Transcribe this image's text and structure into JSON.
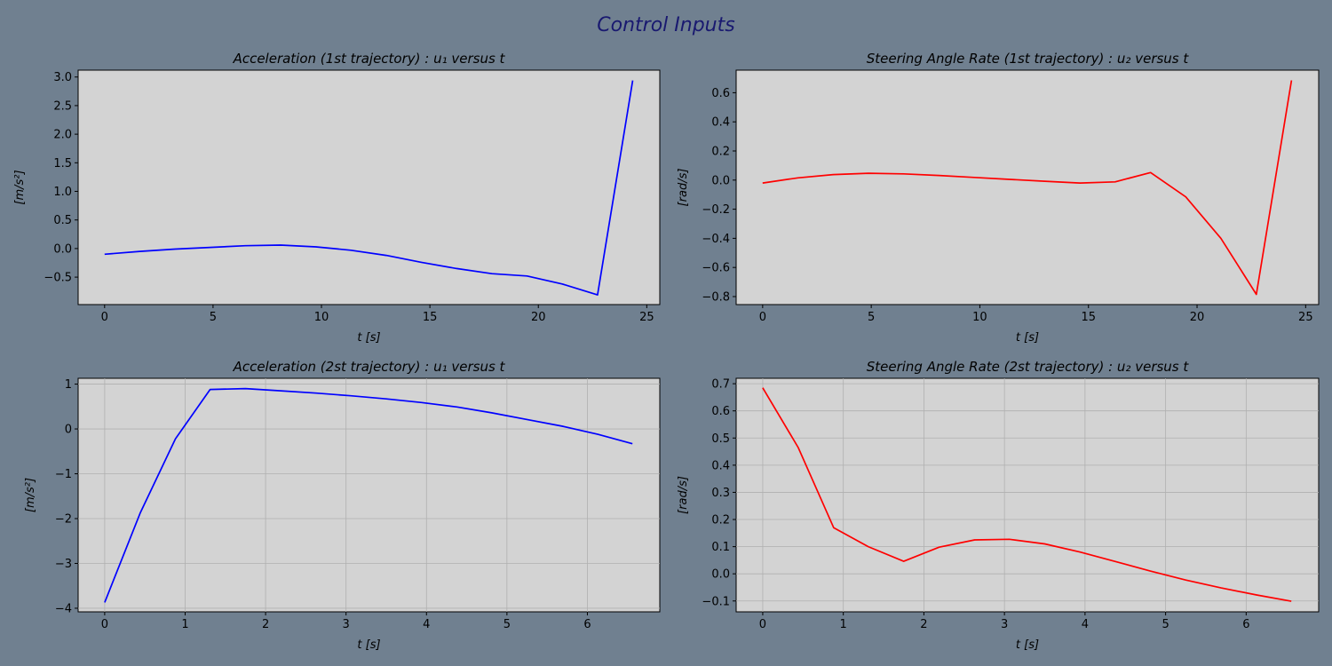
{
  "figure": {
    "title": "Control Inputs",
    "background": "#708090",
    "title_color": "#191970",
    "plot_background": "#d3d3d3"
  },
  "chart_data": [
    {
      "type": "line",
      "title": "Acceleration (1st trajectory) :  u₁ versus t",
      "xlabel": "t [s]",
      "ylabel": "[m/s²]",
      "xlim": [
        -1.22,
        25.6
      ],
      "ylim": [
        -0.98,
        3.12
      ],
      "xticks": [
        0,
        5,
        10,
        15,
        20,
        25
      ],
      "yticks": [
        -0.5,
        0.0,
        0.5,
        1.0,
        1.5,
        2.0,
        2.5,
        3.0
      ],
      "xtick_labels": [
        "0",
        "5",
        "10",
        "15",
        "20",
        "25"
      ],
      "ytick_labels": [
        "−0.5",
        "0.0",
        "0.5",
        "1.0",
        "1.5",
        "2.0",
        "2.5",
        "3.0"
      ],
      "grid": false,
      "series": [
        {
          "color": "#0000ff",
          "x": [
            0,
            1.62,
            3.25,
            4.87,
            6.49,
            8.12,
            9.74,
            11.36,
            12.99,
            14.61,
            16.23,
            17.86,
            19.48,
            21.1,
            22.73,
            24.35
          ],
          "y": [
            -0.1,
            -0.05,
            -0.01,
            0.02,
            0.05,
            0.06,
            0.03,
            -0.03,
            -0.12,
            -0.24,
            -0.35,
            -0.44,
            -0.48,
            -0.62,
            -0.81,
            2.94
          ]
        }
      ]
    },
    {
      "type": "line",
      "title": "Steering Angle Rate (1st trajectory) :  u₂ versus t",
      "xlabel": "t [s]",
      "ylabel": "[rad/s]",
      "xlim": [
        -1.22,
        25.6
      ],
      "ylim": [
        -0.855,
        0.755
      ],
      "xticks": [
        0,
        5,
        10,
        15,
        20,
        25
      ],
      "yticks": [
        -0.8,
        -0.6,
        -0.4,
        -0.2,
        0.0,
        0.2,
        0.4,
        0.6
      ],
      "xtick_labels": [
        "0",
        "5",
        "10",
        "15",
        "20",
        "25"
      ],
      "ytick_labels": [
        "−0.8",
        "−0.6",
        "−0.4",
        "−0.2",
        "0.0",
        "0.2",
        "0.4",
        "0.6"
      ],
      "grid": false,
      "series": [
        {
          "color": "#ff0000",
          "x": [
            0,
            1.62,
            3.25,
            4.87,
            6.49,
            8.12,
            9.74,
            11.36,
            12.99,
            14.61,
            16.23,
            17.86,
            19.48,
            21.1,
            22.73,
            24.35
          ],
          "y": [
            -0.02,
            0.015,
            0.038,
            0.047,
            0.043,
            0.032,
            0.018,
            0.005,
            -0.008,
            -0.02,
            -0.012,
            0.052,
            -0.115,
            -0.4,
            -0.785,
            0.685
          ]
        }
      ]
    },
    {
      "type": "line",
      "title": "Acceleration (2st trajectory) :  u₁ versus t",
      "xlabel": "t [s]",
      "ylabel": "[m/s²]",
      "xlim": [
        -0.33,
        6.9
      ],
      "ylim": [
        -4.08,
        1.13
      ],
      "xticks": [
        0,
        1,
        2,
        3,
        4,
        5,
        6
      ],
      "yticks": [
        -4,
        -3,
        -2,
        -1,
        0,
        1
      ],
      "xtick_labels": [
        "0",
        "1",
        "2",
        "3",
        "4",
        "5",
        "6"
      ],
      "ytick_labels": [
        "−4",
        "−3",
        "−2",
        "−1",
        "0",
        "1"
      ],
      "grid": true,
      "series": [
        {
          "color": "#0000ff",
          "x": [
            0,
            0.44,
            0.88,
            1.31,
            1.75,
            2.19,
            2.63,
            3.06,
            3.5,
            3.94,
            4.38,
            4.81,
            5.25,
            5.69,
            6.13,
            6.56
          ],
          "y": [
            -3.87,
            -1.88,
            -0.22,
            0.88,
            0.9,
            0.85,
            0.8,
            0.74,
            0.67,
            0.59,
            0.49,
            0.36,
            0.21,
            0.06,
            -0.12,
            -0.33
          ]
        }
      ]
    },
    {
      "type": "line",
      "title": "Steering Angle Rate (2st trajectory) :  u₂ versus t",
      "xlabel": "t [s]",
      "ylabel": "[rad/s]",
      "xlim": [
        -0.33,
        6.9
      ],
      "ylim": [
        -0.14,
        0.72
      ],
      "xticks": [
        0,
        1,
        2,
        3,
        4,
        5,
        6
      ],
      "yticks": [
        -0.1,
        0.0,
        0.1,
        0.2,
        0.3,
        0.4,
        0.5,
        0.6,
        0.7
      ],
      "xtick_labels": [
        "0",
        "1",
        "2",
        "3",
        "4",
        "5",
        "6"
      ],
      "ytick_labels": [
        "−0.1",
        "0.0",
        "0.1",
        "0.2",
        "0.3",
        "0.4",
        "0.5",
        "0.6",
        "0.7"
      ],
      "grid": true,
      "series": [
        {
          "color": "#ff0000",
          "x": [
            0,
            0.44,
            0.88,
            1.31,
            1.75,
            2.19,
            2.63,
            3.06,
            3.5,
            3.94,
            4.38,
            4.81,
            5.25,
            5.69,
            6.13,
            6.56
          ],
          "y": [
            0.685,
            0.465,
            0.17,
            0.1,
            0.046,
            0.098,
            0.125,
            0.127,
            0.11,
            0.08,
            0.045,
            0.01,
            -0.023,
            -0.052,
            -0.078,
            -0.101
          ]
        }
      ]
    }
  ]
}
